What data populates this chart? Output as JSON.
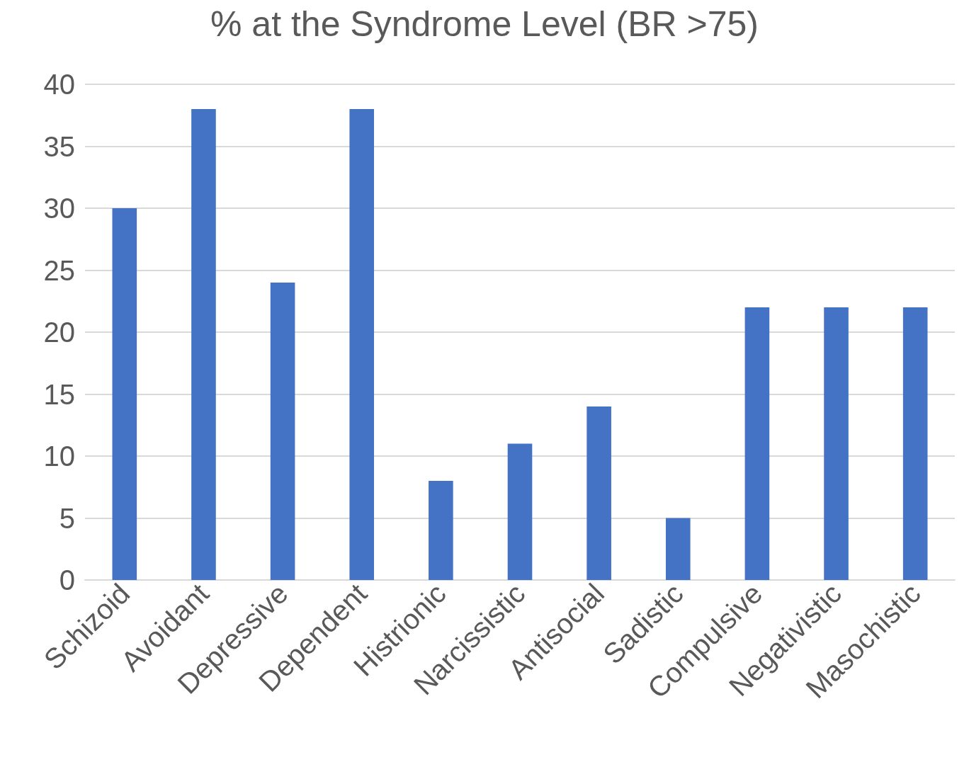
{
  "chart_data": {
    "type": "bar",
    "title": "% at the Syndrome Level (BR >75)",
    "categories": [
      "Schizoid",
      "Avoidant",
      "Depressive",
      "Dependent",
      "Histrionic",
      "Narcissistic",
      "Antisocial",
      "Sadistic",
      "Compulsive",
      "Negativistic",
      "Masochistic"
    ],
    "values": [
      30,
      38,
      24,
      38,
      8,
      11,
      14,
      5,
      22,
      22,
      22
    ],
    "color": "#4472c4",
    "ylim": [
      0,
      40
    ],
    "yticks": [
      0,
      5,
      10,
      15,
      20,
      25,
      30,
      35,
      40
    ],
    "grid": "y"
  }
}
